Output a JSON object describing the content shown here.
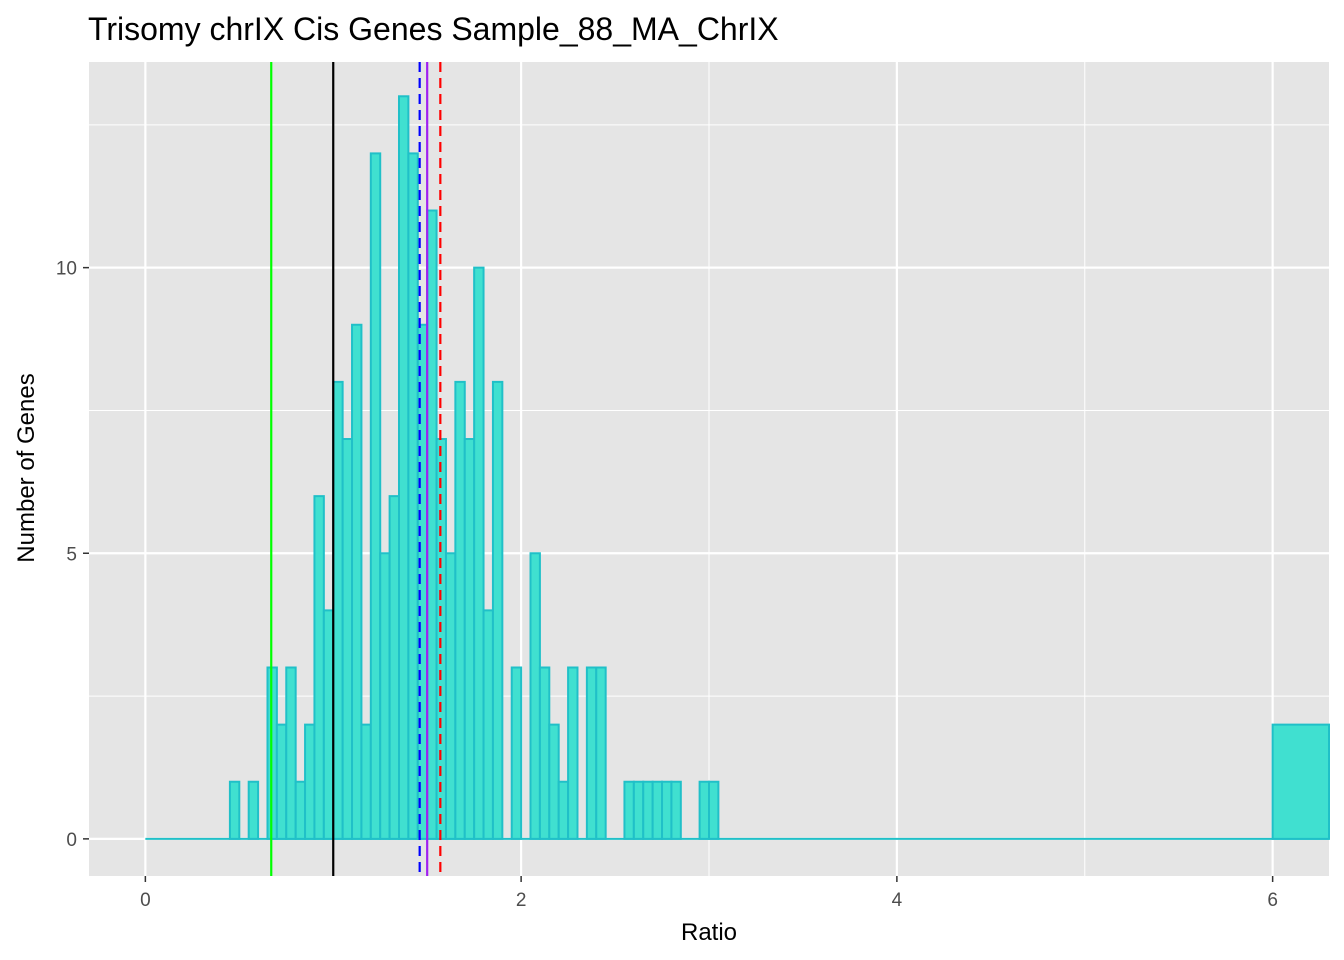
{
  "chart_data": {
    "type": "bar",
    "title": "Trisomy chrIX Cis Genes Sample_88_MA_ChrIX",
    "xlabel": "Ratio",
    "ylabel": "Number of Genes",
    "xlim": [
      -0.3,
      6.3
    ],
    "ylim": [
      -0.65,
      13.6
    ],
    "x_ticks": [
      0,
      2,
      4,
      6
    ],
    "x_tick_labels": [
      "0",
      "2",
      "4",
      "6"
    ],
    "y_ticks": [
      0,
      5,
      10
    ],
    "y_tick_labels": [
      "0",
      "5",
      "10"
    ],
    "grid": true,
    "bin_width": 0.05,
    "bars": [
      {
        "x": 0.45,
        "y": 1
      },
      {
        "x": 0.55,
        "y": 1
      },
      {
        "x": 0.65,
        "y": 3
      },
      {
        "x": 0.7,
        "y": 2
      },
      {
        "x": 0.75,
        "y": 3
      },
      {
        "x": 0.8,
        "y": 1
      },
      {
        "x": 0.85,
        "y": 2
      },
      {
        "x": 0.9,
        "y": 6
      },
      {
        "x": 0.95,
        "y": 4
      },
      {
        "x": 1.0,
        "y": 8
      },
      {
        "x": 1.05,
        "y": 7
      },
      {
        "x": 1.1,
        "y": 9
      },
      {
        "x": 1.15,
        "y": 2
      },
      {
        "x": 1.2,
        "y": 12
      },
      {
        "x": 1.25,
        "y": 5
      },
      {
        "x": 1.3,
        "y": 6
      },
      {
        "x": 1.35,
        "y": 13
      },
      {
        "x": 1.4,
        "y": 12
      },
      {
        "x": 1.45,
        "y": 9
      },
      {
        "x": 1.5,
        "y": 11
      },
      {
        "x": 1.55,
        "y": 7
      },
      {
        "x": 1.6,
        "y": 5
      },
      {
        "x": 1.65,
        "y": 8
      },
      {
        "x": 1.7,
        "y": 7
      },
      {
        "x": 1.75,
        "y": 10
      },
      {
        "x": 1.8,
        "y": 4
      },
      {
        "x": 1.85,
        "y": 8
      },
      {
        "x": 1.95,
        "y": 3
      },
      {
        "x": 2.05,
        "y": 5
      },
      {
        "x": 2.1,
        "y": 3
      },
      {
        "x": 2.15,
        "y": 2
      },
      {
        "x": 2.2,
        "y": 1
      },
      {
        "x": 2.25,
        "y": 3
      },
      {
        "x": 2.35,
        "y": 3
      },
      {
        "x": 2.4,
        "y": 3
      },
      {
        "x": 2.55,
        "y": 1
      },
      {
        "x": 2.6,
        "y": 1
      },
      {
        "x": 2.65,
        "y": 1
      },
      {
        "x": 2.7,
        "y": 1
      },
      {
        "x": 2.75,
        "y": 1
      },
      {
        "x": 2.8,
        "y": 1
      },
      {
        "x": 2.95,
        "y": 1
      },
      {
        "x": 3.0,
        "y": 1
      }
    ],
    "overflow_bar": {
      "x_start": 6.0,
      "x_end": 6.3,
      "y": 2
    },
    "baseline": {
      "x_start": 0,
      "x_end": 6.3,
      "y": 0
    },
    "vlines": [
      {
        "x": 0.67,
        "color": "#00ff00",
        "dash": "solid"
      },
      {
        "x": 1.0,
        "color": "#000000",
        "dash": "solid"
      },
      {
        "x": 1.46,
        "color": "#0000ff",
        "dash": "dashed"
      },
      {
        "x": 1.5,
        "color": "#a020f0",
        "dash": "solid"
      },
      {
        "x": 1.57,
        "color": "#ff0000",
        "dash": "dashed"
      }
    ],
    "colors": {
      "bar_fill": "#40E0D0",
      "bar_stroke": "#20C0C8",
      "panel_background": "#e5e5e5",
      "grid": "#ffffff"
    }
  }
}
